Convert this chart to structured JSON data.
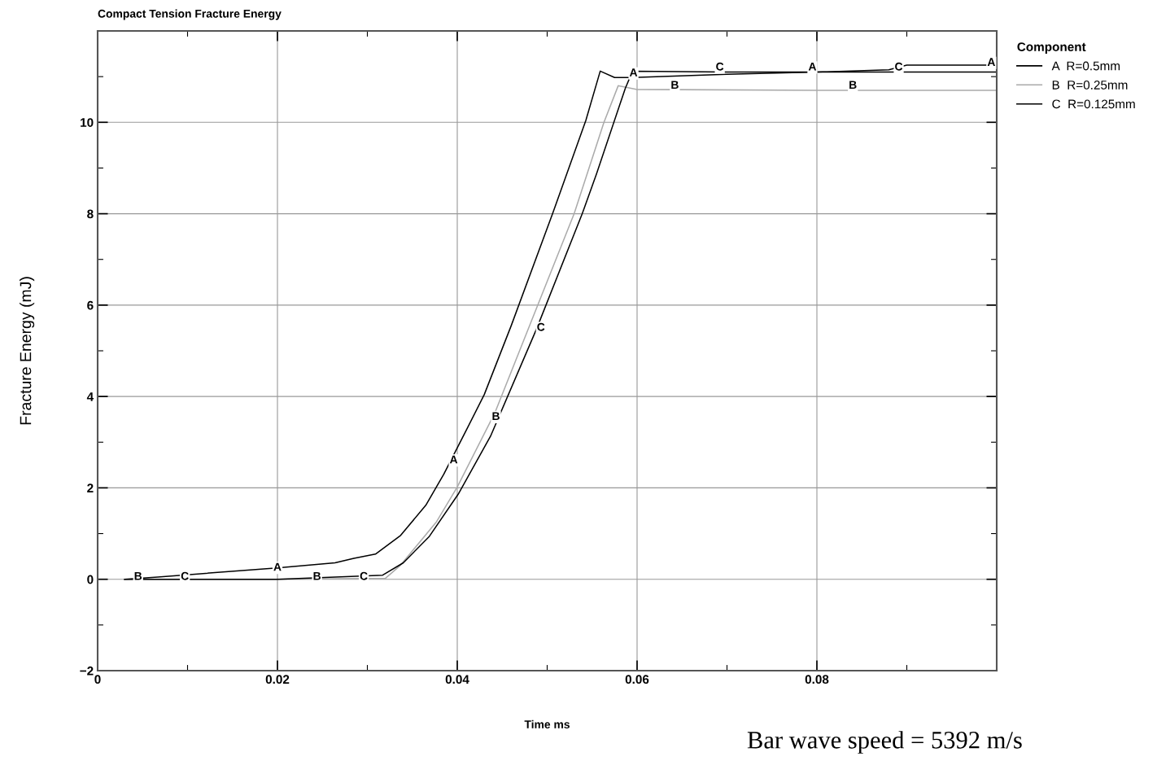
{
  "chart_data": {
    "type": "line",
    "title": "Compact Tension Fracture Energy",
    "xlabel": "Time ms",
    "ylabel": "Fracture Energy (mJ)",
    "legend_title": "Component",
    "legend": "right",
    "grid": true,
    "line_style": "solid",
    "marker": "none",
    "xlim": [
      0,
      0.1
    ],
    "ylim": [
      -2,
      12
    ],
    "xticks": [
      0,
      {
        "value": 0.01,
        "label": null
      },
      0.02,
      {
        "value": 0.03,
        "label": null
      },
      0.04,
      {
        "value": 0.05,
        "label": null
      },
      0.06,
      {
        "value": 0.07,
        "label": null
      },
      0.08,
      {
        "value": 0.09,
        "label": null
      }
    ],
    "yticks": [
      -2,
      {
        "value": -1,
        "label": null
      },
      0,
      {
        "value": 1,
        "label": null
      },
      2,
      {
        "value": 3,
        "label": null
      },
      4,
      {
        "value": 5,
        "label": null
      },
      6,
      {
        "value": 7,
        "label": null
      },
      8,
      {
        "value": 9,
        "label": null
      },
      10,
      {
        "value": 11,
        "label": null
      }
    ],
    "series": [
      {
        "name": "A  R=0.5mm",
        "color": "#000000",
        "x": [
          0.003,
          0.0067,
          0.02,
          0.0264,
          0.0285,
          0.0309,
          0.0337,
          0.0365,
          0.0385,
          0.041,
          0.043,
          0.046,
          0.0506,
          0.0543,
          0.0559,
          0.0575,
          0.0595,
          0.07,
          0.08,
          0.088,
          0.09,
          0.1
        ],
        "values": [
          0,
          0.05,
          0.25,
          0.36,
          0.46,
          0.55,
          0.96,
          1.62,
          2.3,
          3.26,
          4.04,
          5.55,
          8.0,
          10.04,
          11.12,
          10.98,
          10.98,
          11.05,
          11.1,
          11.15,
          11.25,
          11.25
        ]
      },
      {
        "name": "B  R=0.25mm",
        "color": "#aaaaaa",
        "x": [
          0.003,
          0.02,
          0.032,
          0.0337,
          0.0377,
          0.04,
          0.0442,
          0.053,
          0.0563,
          0.0579,
          0.0599,
          0.08,
          0.1
        ],
        "values": [
          0,
          0,
          0.02,
          0.31,
          1.26,
          2.02,
          3.65,
          8.0,
          9.99,
          10.8,
          10.72,
          10.7,
          10.7
        ]
      },
      {
        "name": "C  R=0.125mm",
        "color": "#000000",
        "x": [
          0.003,
          0.02,
          0.0317,
          0.034,
          0.0369,
          0.0401,
          0.0437,
          0.0488,
          0.0539,
          0.0555,
          0.0587,
          0.0595,
          0.07,
          0.08,
          0.09,
          0.1
        ],
        "values": [
          0,
          0,
          0.09,
          0.36,
          0.94,
          1.86,
          3.13,
          5.47,
          8.0,
          8.88,
          10.75,
          11.12,
          11.1,
          11.1,
          11.1,
          11.1
        ]
      }
    ],
    "annotations": [
      {
        "text": "A",
        "x": 0.02,
        "y": 0.25
      },
      {
        "text": "A",
        "x": 0.0396,
        "y": 2.6
      },
      {
        "text": "A",
        "x": 0.0596,
        "y": 11.07
      },
      {
        "text": "A",
        "x": 0.0795,
        "y": 11.2
      },
      {
        "text": "A",
        "x": 0.0994,
        "y": 11.3
      },
      {
        "text": "B",
        "x": 0.0045,
        "y": 0.05
      },
      {
        "text": "B",
        "x": 0.0244,
        "y": 0.05
      },
      {
        "text": "B",
        "x": 0.0443,
        "y": 3.55
      },
      {
        "text": "B",
        "x": 0.0642,
        "y": 10.8
      },
      {
        "text": "B",
        "x": 0.084,
        "y": 10.8
      },
      {
        "text": "C",
        "x": 0.0097,
        "y": 0.05
      },
      {
        "text": "C",
        "x": 0.0296,
        "y": 0.05
      },
      {
        "text": "C",
        "x": 0.0493,
        "y": 5.5
      },
      {
        "text": "C",
        "x": 0.0692,
        "y": 11.2
      },
      {
        "text": "C",
        "x": 0.0891,
        "y": 11.2
      },
      "Bar wave speed = 5392 m/s"
    ]
  }
}
